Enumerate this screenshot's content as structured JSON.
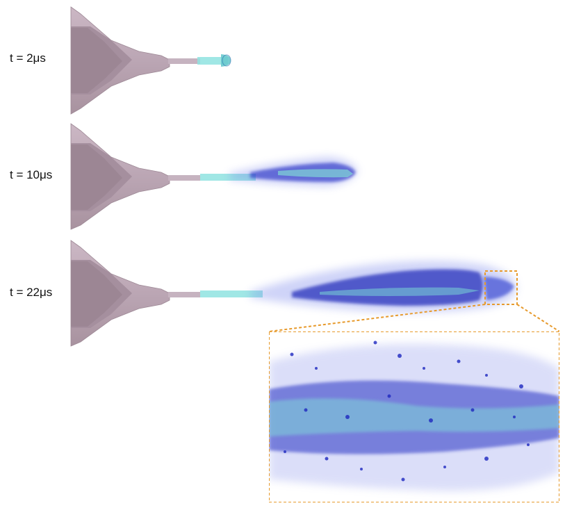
{
  "frames": [
    {
      "label": "t = 2μs"
    },
    {
      "label": "t = 10μs"
    },
    {
      "label": "t = 22μs"
    }
  ],
  "colors": {
    "nozzle_outer": "#bfaab8",
    "nozzle_mid": "#a48e9e",
    "nozzle_inner": "#8e7886",
    "liquid_core": "#8fe3e0",
    "droplets": "#2230c8",
    "zoom_box": "#e79a2c"
  }
}
